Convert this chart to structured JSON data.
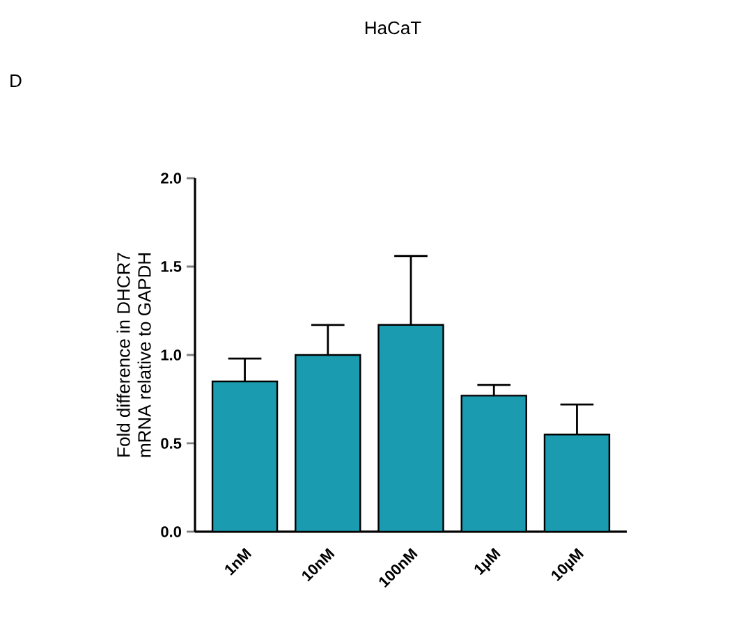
{
  "chart_data": {
    "type": "bar",
    "title": "HaCaT",
    "annotations": [
      "D"
    ],
    "ylabel": "Fold difference in DHCR7\nmRNA relative to GAPDH",
    "categories": [
      "1nM",
      "10nM",
      "100nM",
      "1µM",
      "10µM"
    ],
    "values": [
      0.85,
      1.0,
      1.17,
      0.77,
      0.55
    ],
    "errors": [
      [
        0.85,
        0.98
      ],
      [
        1.0,
        1.17
      ],
      [
        1.17,
        1.56
      ],
      [
        0.77,
        0.83
      ],
      [
        0.55,
        0.72
      ]
    ],
    "color": "#1a9bb0",
    "ylim": [
      0,
      2.0
    ],
    "yticks": [
      {
        "value": 0,
        "label": "0.0"
      },
      {
        "value": 0.5,
        "label": "0.5"
      },
      {
        "value": 1.0,
        "label": "1.0"
      },
      {
        "value": 1.5,
        "label": "1.5"
      },
      {
        "value": 2.0,
        "label": "2.0"
      }
    ],
    "grid": false
  }
}
